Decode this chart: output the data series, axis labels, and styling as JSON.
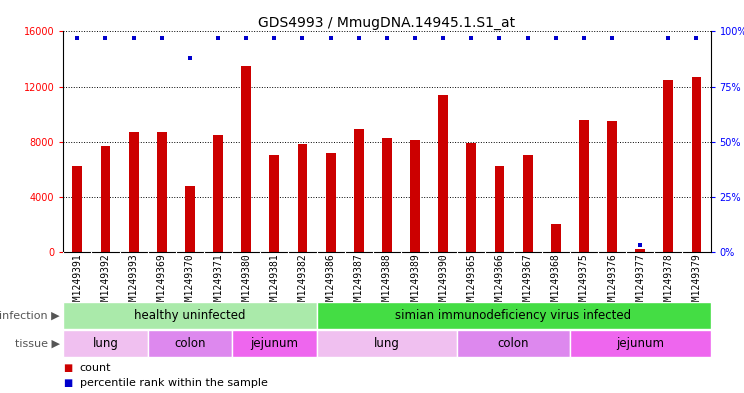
{
  "title": "GDS4993 / MmugDNA.14945.1.S1_at",
  "samples": [
    "GSM1249391",
    "GSM1249392",
    "GSM1249393",
    "GSM1249369",
    "GSM1249370",
    "GSM1249371",
    "GSM1249380",
    "GSM1249381",
    "GSM1249382",
    "GSM1249386",
    "GSM1249387",
    "GSM1249388",
    "GSM1249389",
    "GSM1249390",
    "GSM1249365",
    "GSM1249366",
    "GSM1249367",
    "GSM1249368",
    "GSM1249375",
    "GSM1249376",
    "GSM1249377",
    "GSM1249378",
    "GSM1249379"
  ],
  "counts": [
    6200,
    7700,
    8700,
    8700,
    4800,
    8500,
    13500,
    7000,
    7800,
    7200,
    8900,
    8300,
    8100,
    11400,
    7900,
    6200,
    7000,
    2000,
    9600,
    9500,
    200,
    12500,
    12700
  ],
  "percentile_ranks": [
    97,
    97,
    97,
    97,
    88,
    97,
    97,
    97,
    97,
    97,
    97,
    97,
    97,
    97,
    97,
    97,
    97,
    97,
    97,
    97,
    3,
    97,
    97
  ],
  "bar_color": "#cc0000",
  "dot_color": "#0000cc",
  "ylim_left": [
    0,
    16000
  ],
  "ylim_right": [
    0,
    100
  ],
  "yticks_left": [
    0,
    4000,
    8000,
    12000,
    16000
  ],
  "yticks_right": [
    0,
    25,
    50,
    75,
    100
  ],
  "infection_groups": [
    {
      "label": "healthy uninfected",
      "start": 0,
      "end": 9,
      "color": "#aaeaaa"
    },
    {
      "label": "simian immunodeficiency virus infected",
      "start": 9,
      "end": 23,
      "color": "#44dd44"
    }
  ],
  "tissue_groups": [
    {
      "label": "lung",
      "start": 0,
      "end": 3,
      "color": "#f0c0f0"
    },
    {
      "label": "colon",
      "start": 3,
      "end": 6,
      "color": "#dd88ee"
    },
    {
      "label": "jejunum",
      "start": 6,
      "end": 9,
      "color": "#ee66ee"
    },
    {
      "label": "lung",
      "start": 9,
      "end": 14,
      "color": "#f0c0f0"
    },
    {
      "label": "colon",
      "start": 14,
      "end": 18,
      "color": "#dd88ee"
    },
    {
      "label": "jejunum",
      "start": 18,
      "end": 23,
      "color": "#ee66ee"
    }
  ],
  "infection_label": "infection",
  "tissue_label": "tissue",
  "legend_count_label": "count",
  "legend_percentile_label": "percentile rank within the sample",
  "chart_bg": "#ffffff",
  "xlabel_bg": "#d0d0d0",
  "title_fontsize": 10,
  "tick_fontsize": 7,
  "annotation_fontsize": 8.5,
  "label_fontsize": 8
}
